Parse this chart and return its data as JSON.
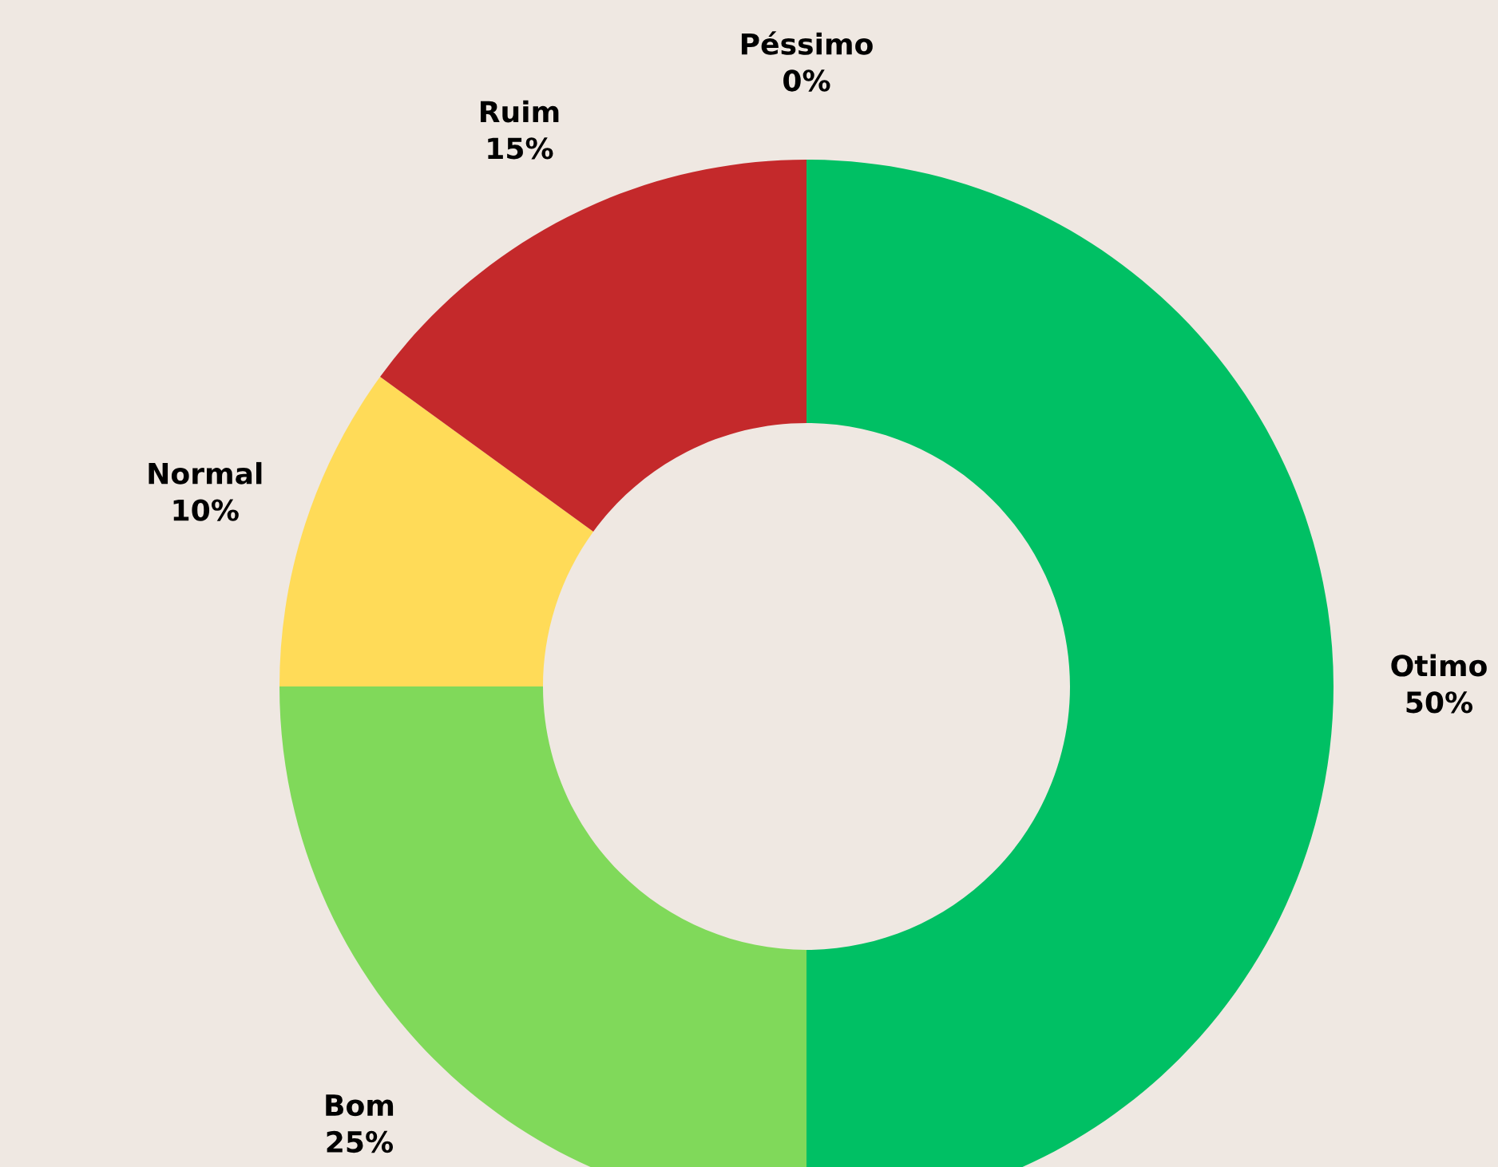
{
  "chart_data": {
    "type": "donut",
    "categories": [
      "Otimo",
      "Bom",
      "Normal",
      "Ruim",
      "Péssimo"
    ],
    "values": [
      50,
      25,
      10,
      15,
      0
    ],
    "colors": [
      "#00c064",
      "#80d95a",
      "#ffdb58",
      "#c4292b",
      "#8b1a1a"
    ],
    "value_labels": [
      "50%",
      "25%",
      "10%",
      "15%",
      "0%"
    ],
    "legend": false
  }
}
